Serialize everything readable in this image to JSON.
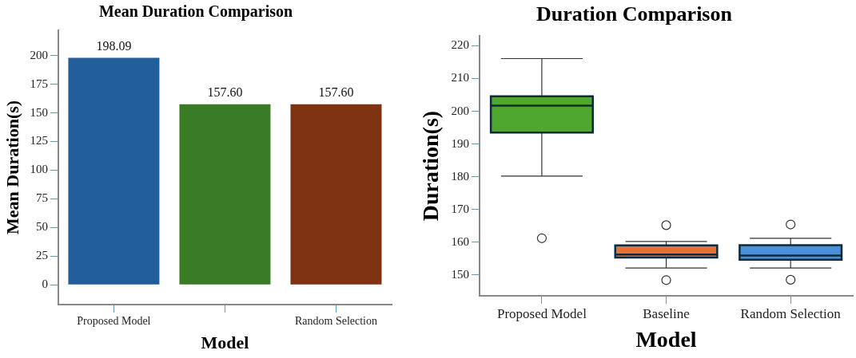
{
  "chart_data": [
    {
      "type": "bar",
      "title": "Mean Duration Comparison",
      "xlabel": "Model",
      "ylabel": "Mean Duration(s)",
      "categories": [
        "Proposed Model",
        null,
        "Random Selection"
      ],
      "values": [
        198.09,
        157.6,
        157.6
      ],
      "colors": [
        "#225e9a",
        "#3a7b25",
        "#7f3312"
      ],
      "value_labels": [
        "198.09",
        "157.60",
        "157.60"
      ],
      "ylim": [
        -17,
        222
      ],
      "yticks": [
        0,
        25,
        50,
        75,
        100,
        125,
        150,
        175,
        200
      ],
      "grid": false,
      "legend": false
    },
    {
      "type": "box",
      "title": "Duration Comparison",
      "xlabel": "Model",
      "ylabel": "Duration(s)",
      "categories": [
        "Proposed Model",
        "Baseline",
        "Random Selection"
      ],
      "colors": [
        "#4fa72f",
        "#e8712f",
        "#4a90d9"
      ],
      "boxes": [
        {
          "low": 180.2,
          "q1": 193.5,
          "median": 201.7,
          "q3": 204.6,
          "high": 216.1,
          "outliers": [
            161.2
          ]
        },
        {
          "low": 152.1,
          "q1": 155.3,
          "median": 156.2,
          "q3": 159.0,
          "high": 160.2,
          "outliers": [
            165.2,
            148.4
          ]
        },
        {
          "low": 152.1,
          "q1": 154.6,
          "median": 155.9,
          "q3": 159.1,
          "high": 161.2,
          "outliers": [
            165.4,
            148.5
          ]
        }
      ],
      "ylim": [
        143.6,
        223
      ],
      "yticks": [
        150,
        160,
        170,
        180,
        190,
        200,
        210,
        220
      ],
      "grid": false,
      "legend": false
    }
  ]
}
